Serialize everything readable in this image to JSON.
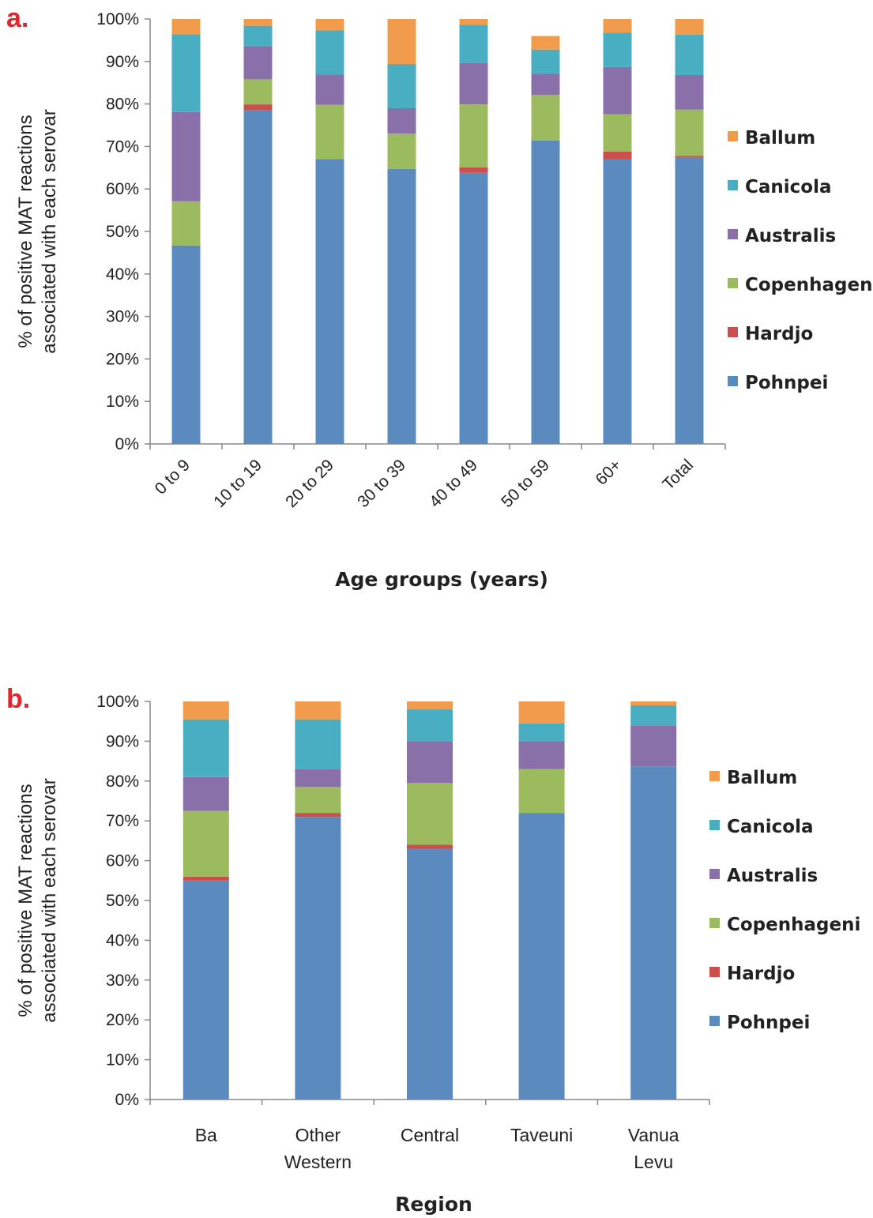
{
  "colors": {
    "Pohnpei": "#5b8bbe",
    "Hardjo": "#c9504d",
    "Copenhageni": "#9cba5e",
    "Australis": "#8a70a8",
    "Canicola": "#4aaec3",
    "Ballum": "#f19c4c",
    "panel_letter": "#e1262d"
  },
  "chart_data": [
    {
      "panel_label": "a.",
      "type": "bar",
      "stacked": true,
      "xlabel": "Age groups (years)",
      "ylabel_lines": [
        "% of positive MAT reactions",
        "associated with each serovar"
      ],
      "ylim": [
        0,
        100
      ],
      "y_ticks": [
        "0%",
        "10%",
        "20%",
        "30%",
        "40%",
        "50%",
        "60%",
        "70%",
        "80%",
        "90%",
        "100%"
      ],
      "categories": [
        "0 to 9",
        "10 to 19",
        "20 to 29",
        "30 to 39",
        "40 to 49",
        "50 to 59",
        "60+",
        "Total"
      ],
      "legend_order": [
        "Ballum",
        "Canicola",
        "Australis",
        "Copenhageni",
        "Hardjo",
        "Pohnpei"
      ],
      "series": [
        {
          "name": "Pohnpei",
          "values": [
            46.7,
            78.5,
            67.0,
            64.7,
            63.8,
            71.4,
            67.0,
            67.4
          ]
        },
        {
          "name": "Hardjo",
          "values": [
            0.0,
            1.4,
            0.0,
            0.0,
            1.3,
            0.0,
            1.8,
            0.4
          ]
        },
        {
          "name": "Copenhageni",
          "values": [
            10.4,
            5.9,
            12.8,
            8.3,
            14.8,
            10.7,
            8.8,
            10.9
          ]
        },
        {
          "name": "Australis",
          "values": [
            21.0,
            7.8,
            7.1,
            6.0,
            9.7,
            5.0,
            11.1,
            8.1
          ]
        },
        {
          "name": "Canicola",
          "values": [
            18.3,
            4.8,
            10.4,
            10.4,
            9.0,
            5.7,
            8.1,
            9.5
          ]
        },
        {
          "name": "Ballum",
          "values": [
            3.6,
            1.6,
            2.7,
            10.6,
            1.4,
            3.2,
            3.2,
            3.7
          ]
        }
      ]
    },
    {
      "panel_label": "b.",
      "type": "bar",
      "stacked": true,
      "xlabel": "Region",
      "ylabel_lines": [
        "% of positive MAT reactions",
        "associated with each serovar"
      ],
      "ylim": [
        0,
        100
      ],
      "y_ticks": [
        "0%",
        "10%",
        "20%",
        "30%",
        "40%",
        "50%",
        "60%",
        "70%",
        "80%",
        "90%",
        "100%"
      ],
      "categories": [
        [
          "Ba"
        ],
        [
          "Other",
          "Western"
        ],
        [
          "Central"
        ],
        [
          "Taveuni"
        ],
        [
          "Vanua",
          "Levu"
        ]
      ],
      "legend_order": [
        "Ballum",
        "Canicola",
        "Australis",
        "Copenhageni",
        "Hardjo",
        "Pohnpei"
      ],
      "series": [
        {
          "name": "Pohnpei",
          "values": [
            55.0,
            71.0,
            63.0,
            72.0,
            83.7
          ]
        },
        {
          "name": "Hardjo",
          "values": [
            1.0,
            1.0,
            1.0,
            0.0,
            0.0
          ]
        },
        {
          "name": "Copenhageni",
          "values": [
            16.5,
            6.5,
            15.5,
            11.0,
            0.0
          ]
        },
        {
          "name": "Australis",
          "values": [
            8.5,
            4.5,
            10.5,
            7.0,
            10.3
          ]
        },
        {
          "name": "Canicola",
          "values": [
            14.5,
            12.5,
            8.0,
            4.5,
            5.0
          ]
        },
        {
          "name": "Ballum",
          "values": [
            4.5,
            4.5,
            2.0,
            5.5,
            1.0
          ]
        }
      ]
    }
  ]
}
